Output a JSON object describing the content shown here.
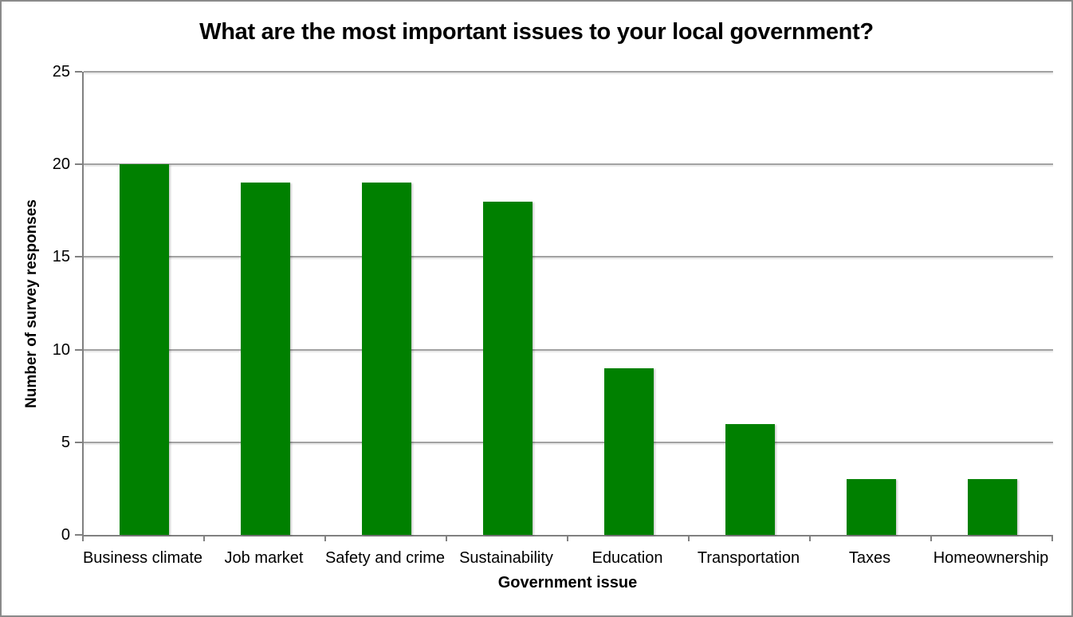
{
  "frame": {
    "background_color": "#ffffff",
    "border_color": "#8a8a8a"
  },
  "chart_data": {
    "type": "bar",
    "title": "What are the most important issues to your local government?",
    "categories": [
      "Business climate",
      "Job market",
      "Safety and crime",
      "Sustainability",
      "Education",
      "Transportation",
      "Taxes",
      "Homeownership"
    ],
    "values": [
      20,
      19,
      19,
      18,
      9,
      6,
      3,
      3
    ],
    "xlabel": "Government issue",
    "ylabel": "Number of survey responses",
    "ylim": [
      0,
      25
    ],
    "yticks": [
      0,
      5,
      10,
      15,
      20,
      25
    ],
    "grid": "horizontal",
    "legend_position": "none",
    "bar_color": "#008000",
    "gridline_color": "#a2a2a2",
    "axis_color": "#808080",
    "text_color": "#000000"
  }
}
